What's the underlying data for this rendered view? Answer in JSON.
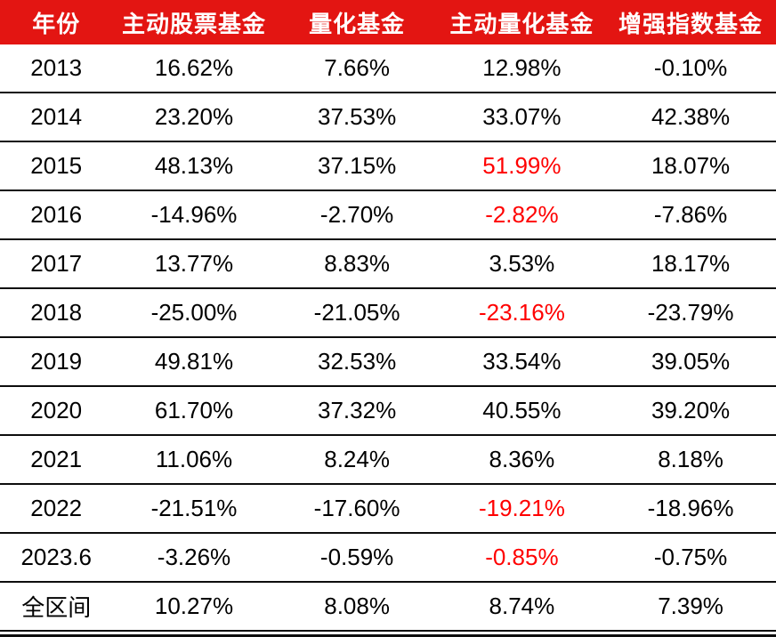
{
  "colors": {
    "header_bg": "#E31512",
    "header_fg": "#FFFFFF",
    "body_fg": "#000000",
    "highlight": "#FF0000",
    "rule": "#0D0D0D"
  },
  "chart_data": {
    "type": "table",
    "columns": [
      "年份",
      "主动股票基金",
      "量化基金",
      "主动量化基金",
      "增强指数基金"
    ],
    "rows": [
      [
        "2013",
        "16.62%",
        "7.66%",
        "12.98%",
        "-0.10%"
      ],
      [
        "2014",
        "23.20%",
        "37.53%",
        "33.07%",
        "42.38%"
      ],
      [
        "2015",
        "48.13%",
        "37.15%",
        "51.99%",
        "18.07%"
      ],
      [
        "2016",
        "-14.96%",
        "-2.70%",
        "-2.82%",
        "-7.86%"
      ],
      [
        "2017",
        "13.77%",
        "8.83%",
        "3.53%",
        "18.17%"
      ],
      [
        "2018",
        "-25.00%",
        "-21.05%",
        "-23.16%",
        "-23.79%"
      ],
      [
        "2019",
        "49.81%",
        "32.53%",
        "33.54%",
        "39.05%"
      ],
      [
        "2020",
        "61.70%",
        "37.32%",
        "40.55%",
        "39.20%"
      ],
      [
        "2021",
        "11.06%",
        "8.24%",
        "8.36%",
        "8.18%"
      ],
      [
        "2022",
        "-21.51%",
        "-17.60%",
        "-19.21%",
        "-18.96%"
      ],
      [
        "2023.6",
        "-3.26%",
        "-0.59%",
        "-0.85%",
        "-0.75%"
      ],
      [
        "全区间",
        "10.27%",
        "8.08%",
        "8.74%",
        "7.39%"
      ]
    ],
    "highlighted_cells_note": "values in column 主动量化基金 shown in red",
    "highlighted_cells": [
      [
        2,
        3
      ],
      [
        3,
        3
      ],
      [
        5,
        3
      ],
      [
        9,
        3
      ],
      [
        10,
        3
      ]
    ],
    "layout": {
      "header_style": "red-background-white-text",
      "grid": "horizontal-rules-only",
      "bottom": "double-rule"
    }
  }
}
